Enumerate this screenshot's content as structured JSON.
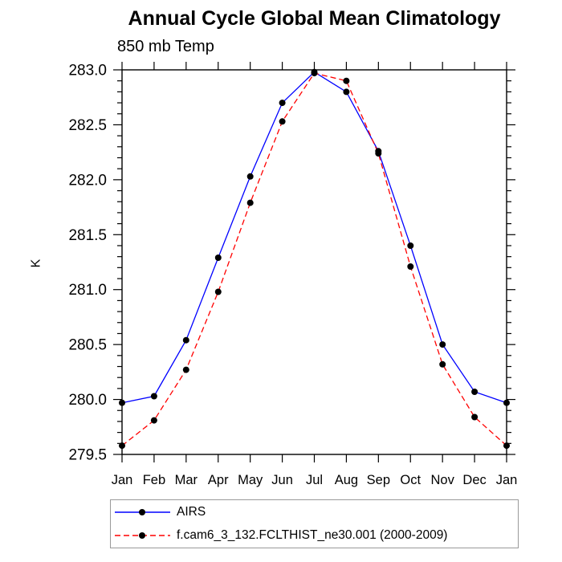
{
  "chart_data": {
    "type": "line",
    "title": "Annual Cycle Global Mean Climatology",
    "subtitle": "850 mb Temp",
    "xlabel": "",
    "ylabel": "K",
    "categories": [
      "Jan",
      "Feb",
      "Mar",
      "Apr",
      "May",
      "Jun",
      "Jul",
      "Aug",
      "Sep",
      "Oct",
      "Nov",
      "Dec",
      "Jan"
    ],
    "ylim": [
      279.5,
      283.0
    ],
    "ytick_major_step": 0.5,
    "ytick_minor_step": 0.1,
    "grid": false,
    "legend_position": "bottom-left",
    "frame": "box-with-outward-ticks",
    "series": [
      {
        "name": "AIRS",
        "color": "#0000ff",
        "line_style": "solid",
        "marker": "filled-circle",
        "marker_color": "#000000",
        "values": [
          279.97,
          280.03,
          280.54,
          281.29,
          282.03,
          282.7,
          282.98,
          282.8,
          282.26,
          281.4,
          280.5,
          280.07,
          279.97
        ]
      },
      {
        "name": "f.cam6_3_132.FCLTHIST_ne30.001 (2000-2009)",
        "color": "#ff0000",
        "line_style": "dashed",
        "marker": "filled-circle",
        "marker_color": "#000000",
        "values": [
          279.58,
          279.81,
          280.27,
          280.98,
          281.79,
          282.53,
          282.97,
          282.9,
          282.24,
          281.21,
          280.32,
          279.84,
          279.58
        ]
      }
    ],
    "axis_color": "#000000",
    "tick_label_color": "#000000"
  }
}
